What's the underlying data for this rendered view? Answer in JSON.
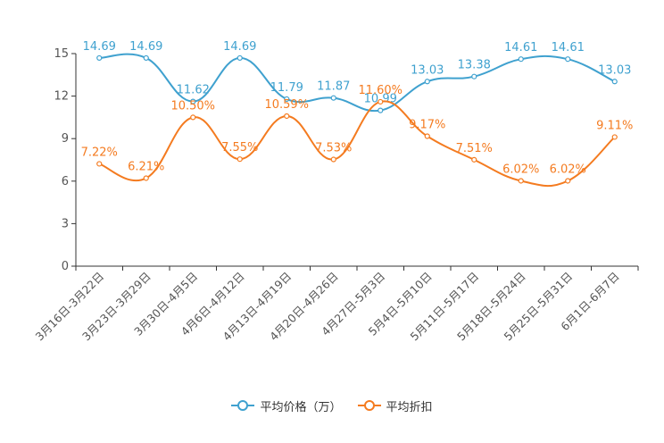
{
  "colors": {
    "price": "#3fa1cf",
    "discount": "#f47b20",
    "axis": "#333333",
    "text": "#555555"
  },
  "chart_data": {
    "type": "line",
    "categories": [
      "3月16日-3月22日",
      "3月23日-3月29日",
      "3月30日-4月5日",
      "4月6日-4月12日",
      "4月13日-4月19日",
      "4月20日-4月26日",
      "4月27日-5月3日",
      "5月4日-5月10日",
      "5月11日-5月17日",
      "5月18日-5月24日",
      "5月25日-5月31日",
      "6月1日-6月7日"
    ],
    "ylim": [
      0,
      15
    ],
    "yticks": [
      0,
      3,
      6,
      9,
      12,
      15
    ],
    "series": [
      {
        "name": "平均价格（万）",
        "values": [
          14.69,
          14.69,
          11.62,
          14.69,
          11.79,
          11.87,
          10.99,
          13.03,
          13.38,
          14.61,
          14.61,
          13.03
        ],
        "labels": [
          "14.69",
          "14.69",
          "11.62",
          "14.69",
          "11.79",
          "11.87",
          "10.99",
          "13.03",
          "13.38",
          "14.61",
          "14.61",
          "13.03"
        ]
      },
      {
        "name": "平均折扣",
        "values": [
          7.22,
          6.21,
          10.5,
          7.55,
          10.59,
          7.53,
          11.6,
          9.17,
          7.51,
          6.02,
          6.02,
          9.11
        ],
        "labels": [
          "7.22%",
          "6.21%",
          "10.50%",
          "7.55%",
          "10.59%",
          "7.53%",
          "11.60%",
          "9.17%",
          "7.51%",
          "6.02%",
          "6.02%",
          "9.11%"
        ]
      }
    ],
    "legend_position": "bottom-center",
    "grid": false
  },
  "legend": {
    "price": "平均价格（万）",
    "discount": "平均折扣"
  }
}
